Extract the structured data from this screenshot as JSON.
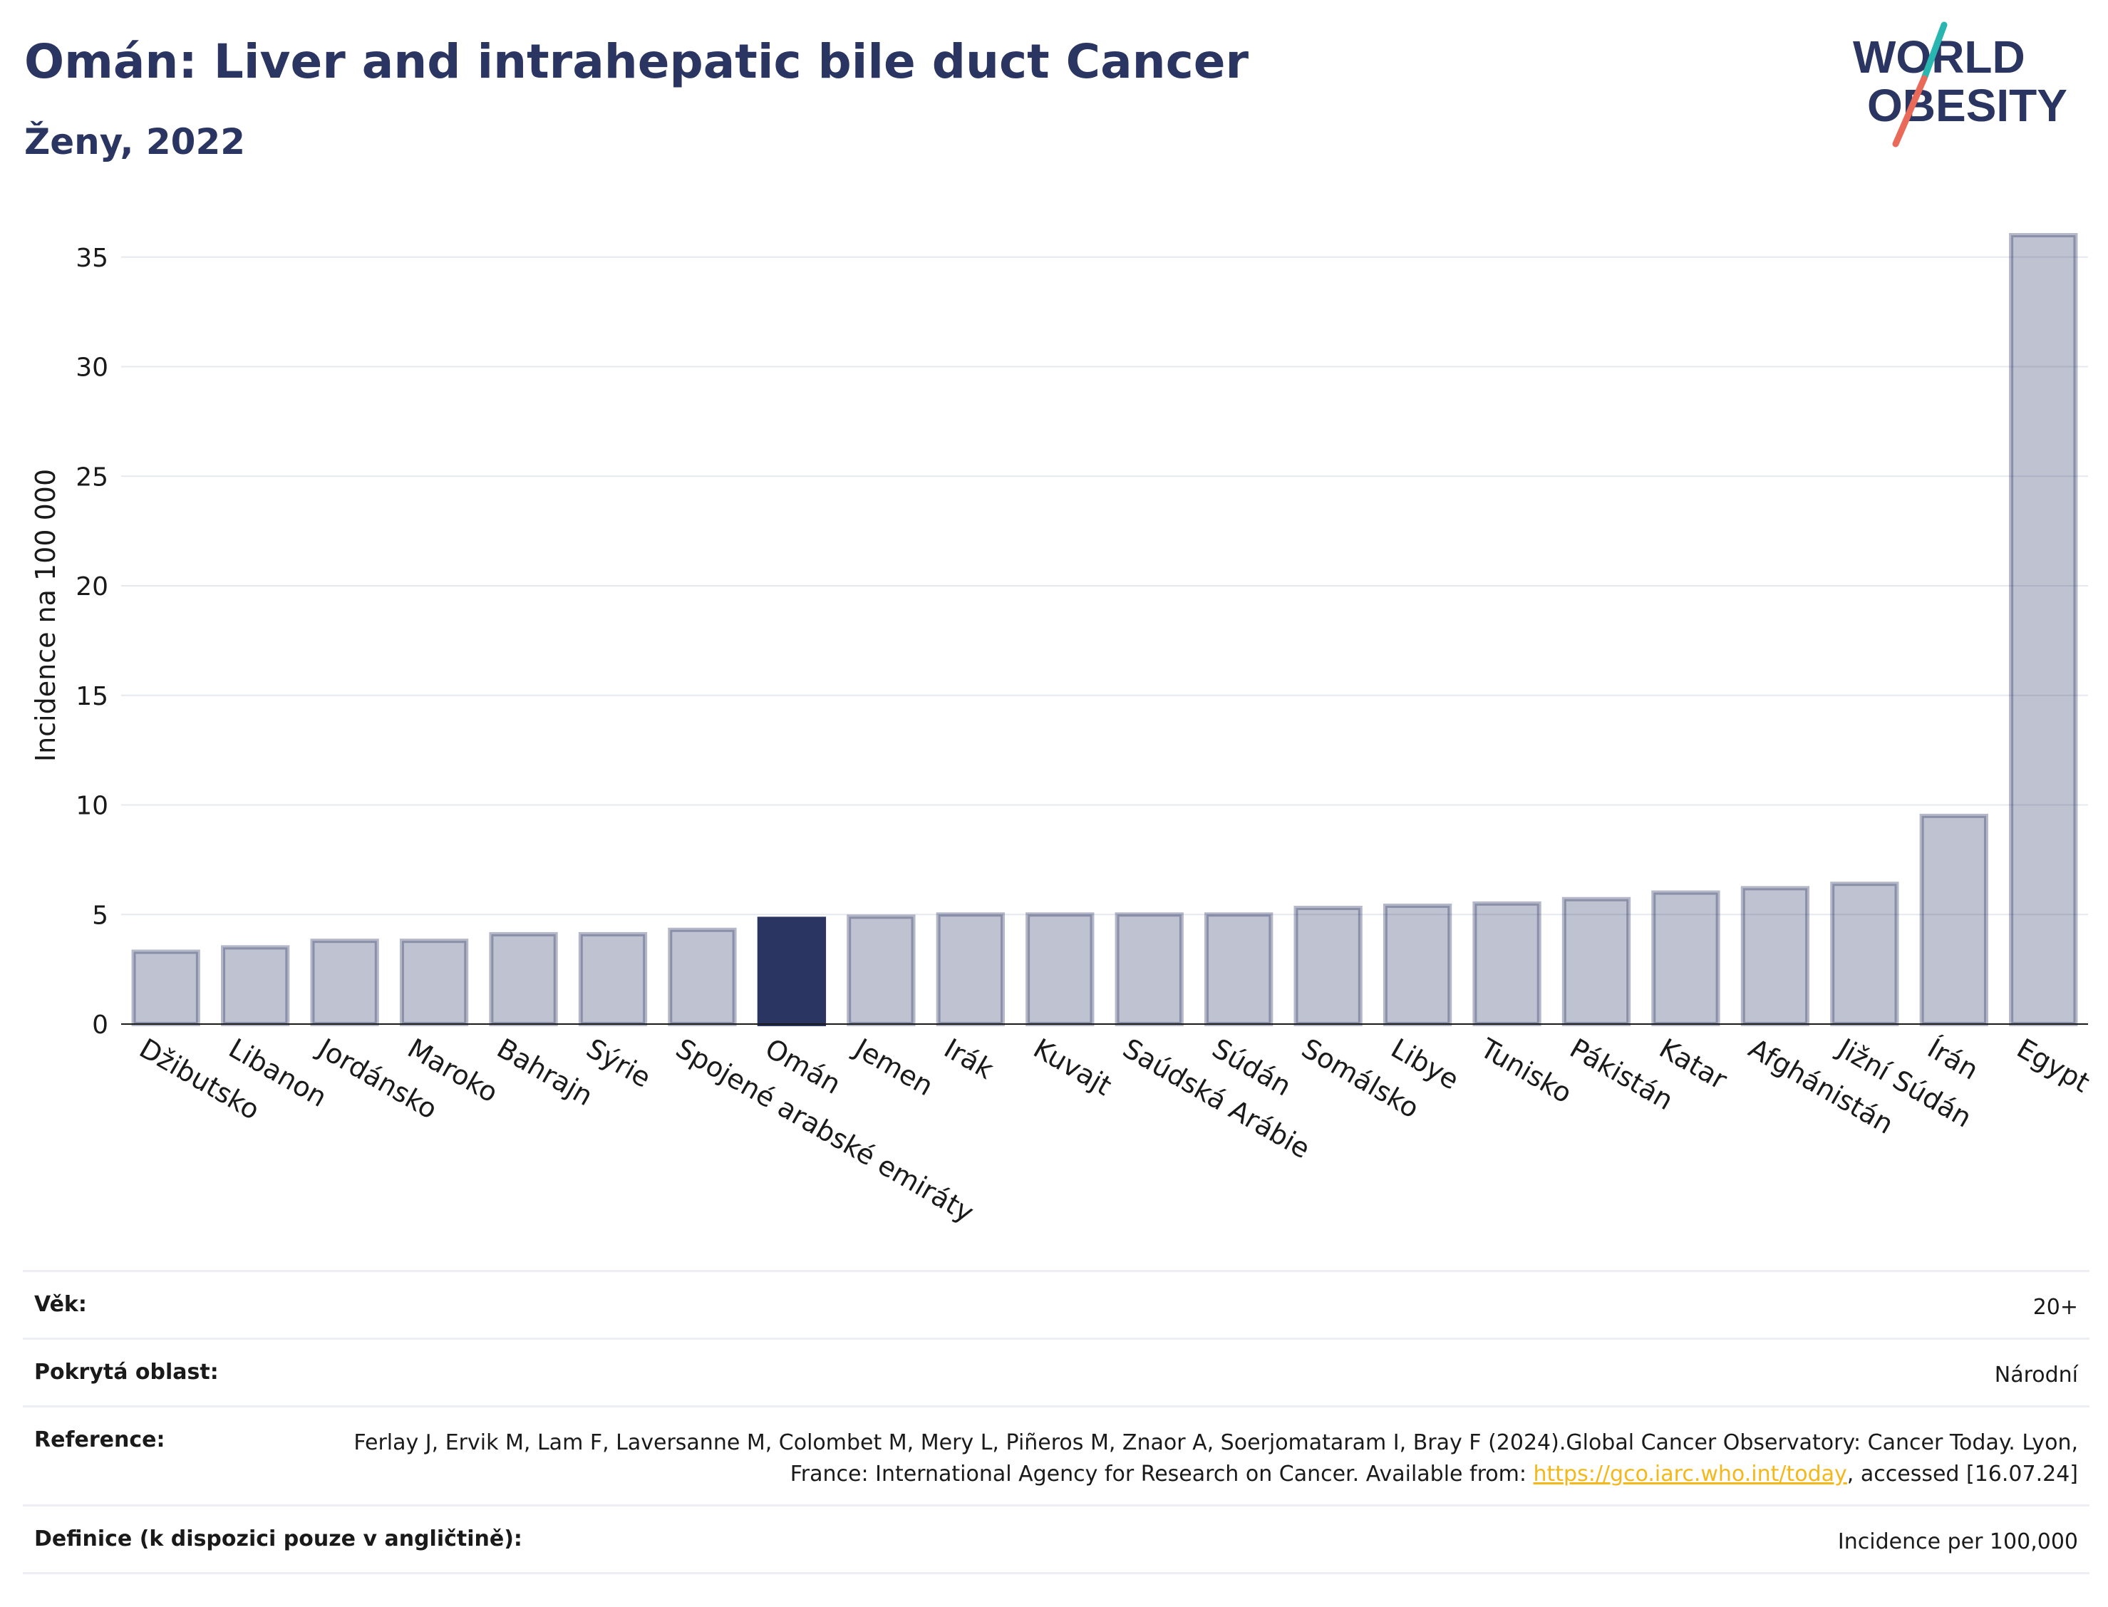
{
  "header": {
    "title": "Omán: Liver and intrahepatic bile duct Cancer",
    "subtitle": "Ženy, 2022"
  },
  "logo": {
    "line1": "WORLD",
    "line2": "OBESITY",
    "colors": {
      "text": "#2b3562",
      "slash_top": "#2ab6b0",
      "slash_bottom": "#ea6a5a"
    }
  },
  "colors": {
    "bar_default": "#2b3562",
    "bar_default_opacity": 0.3,
    "bar_highlight": "#2b3562",
    "grid": "#e6e8ef",
    "axis_text": "#1a1a1a",
    "title": "#2b3562",
    "link": "#f5b81a"
  },
  "chart_data": {
    "type": "bar",
    "title": "Omán: Liver and intrahepatic bile duct Cancer",
    "subtitle": "Ženy, 2022",
    "xlabel": "",
    "ylabel": "Incidence na 100 000",
    "ylim": [
      0,
      36
    ],
    "yticks": [
      0,
      5,
      10,
      15,
      20,
      25,
      30,
      35
    ],
    "grid": true,
    "highlight": "Omán",
    "categories": [
      "Džibutsko",
      "Libanon",
      "Jordánsko",
      "Maroko",
      "Bahrajn",
      "Sýrie",
      "Spojené arabské emiráty",
      "Omán",
      "Jemen",
      "Irák",
      "Kuvajt",
      "Saúdská Arábie",
      "Súdán",
      "Somálsko",
      "Libye",
      "Tunisko",
      "Pákistán",
      "Katar",
      "Afghánistán",
      "Jižní Súdán",
      "Írán",
      "Egypt"
    ],
    "values": [
      3.3,
      3.5,
      3.8,
      3.8,
      4.1,
      4.1,
      4.3,
      4.8,
      4.9,
      5.0,
      5.0,
      5.0,
      5.0,
      5.3,
      5.4,
      5.5,
      5.7,
      6.0,
      6.2,
      6.4,
      9.5,
      36.0
    ]
  },
  "info": {
    "age_label": "Věk:",
    "age_value": "20+",
    "coverage_label": "Pokrytá oblast:",
    "coverage_value": "Národní",
    "reference_label": "Reference:",
    "reference_text_1": "Ferlay J, Ervik M, Lam F, Laversanne M, Colombet M, Mery L, Piñeros M, Znaor A, Soerjomataram I, Bray F (2024).Global Cancer Observatory: Cancer Today. Lyon, France: International Agency for Research on Cancer. Available from: ",
    "reference_link": "https://gco.iarc.who.int/today",
    "reference_text_2": ", accessed [16.07.24]",
    "definition_label": "Definice (k dispozici pouze v angličtině):",
    "definition_value": "Incidence per 100,000"
  }
}
